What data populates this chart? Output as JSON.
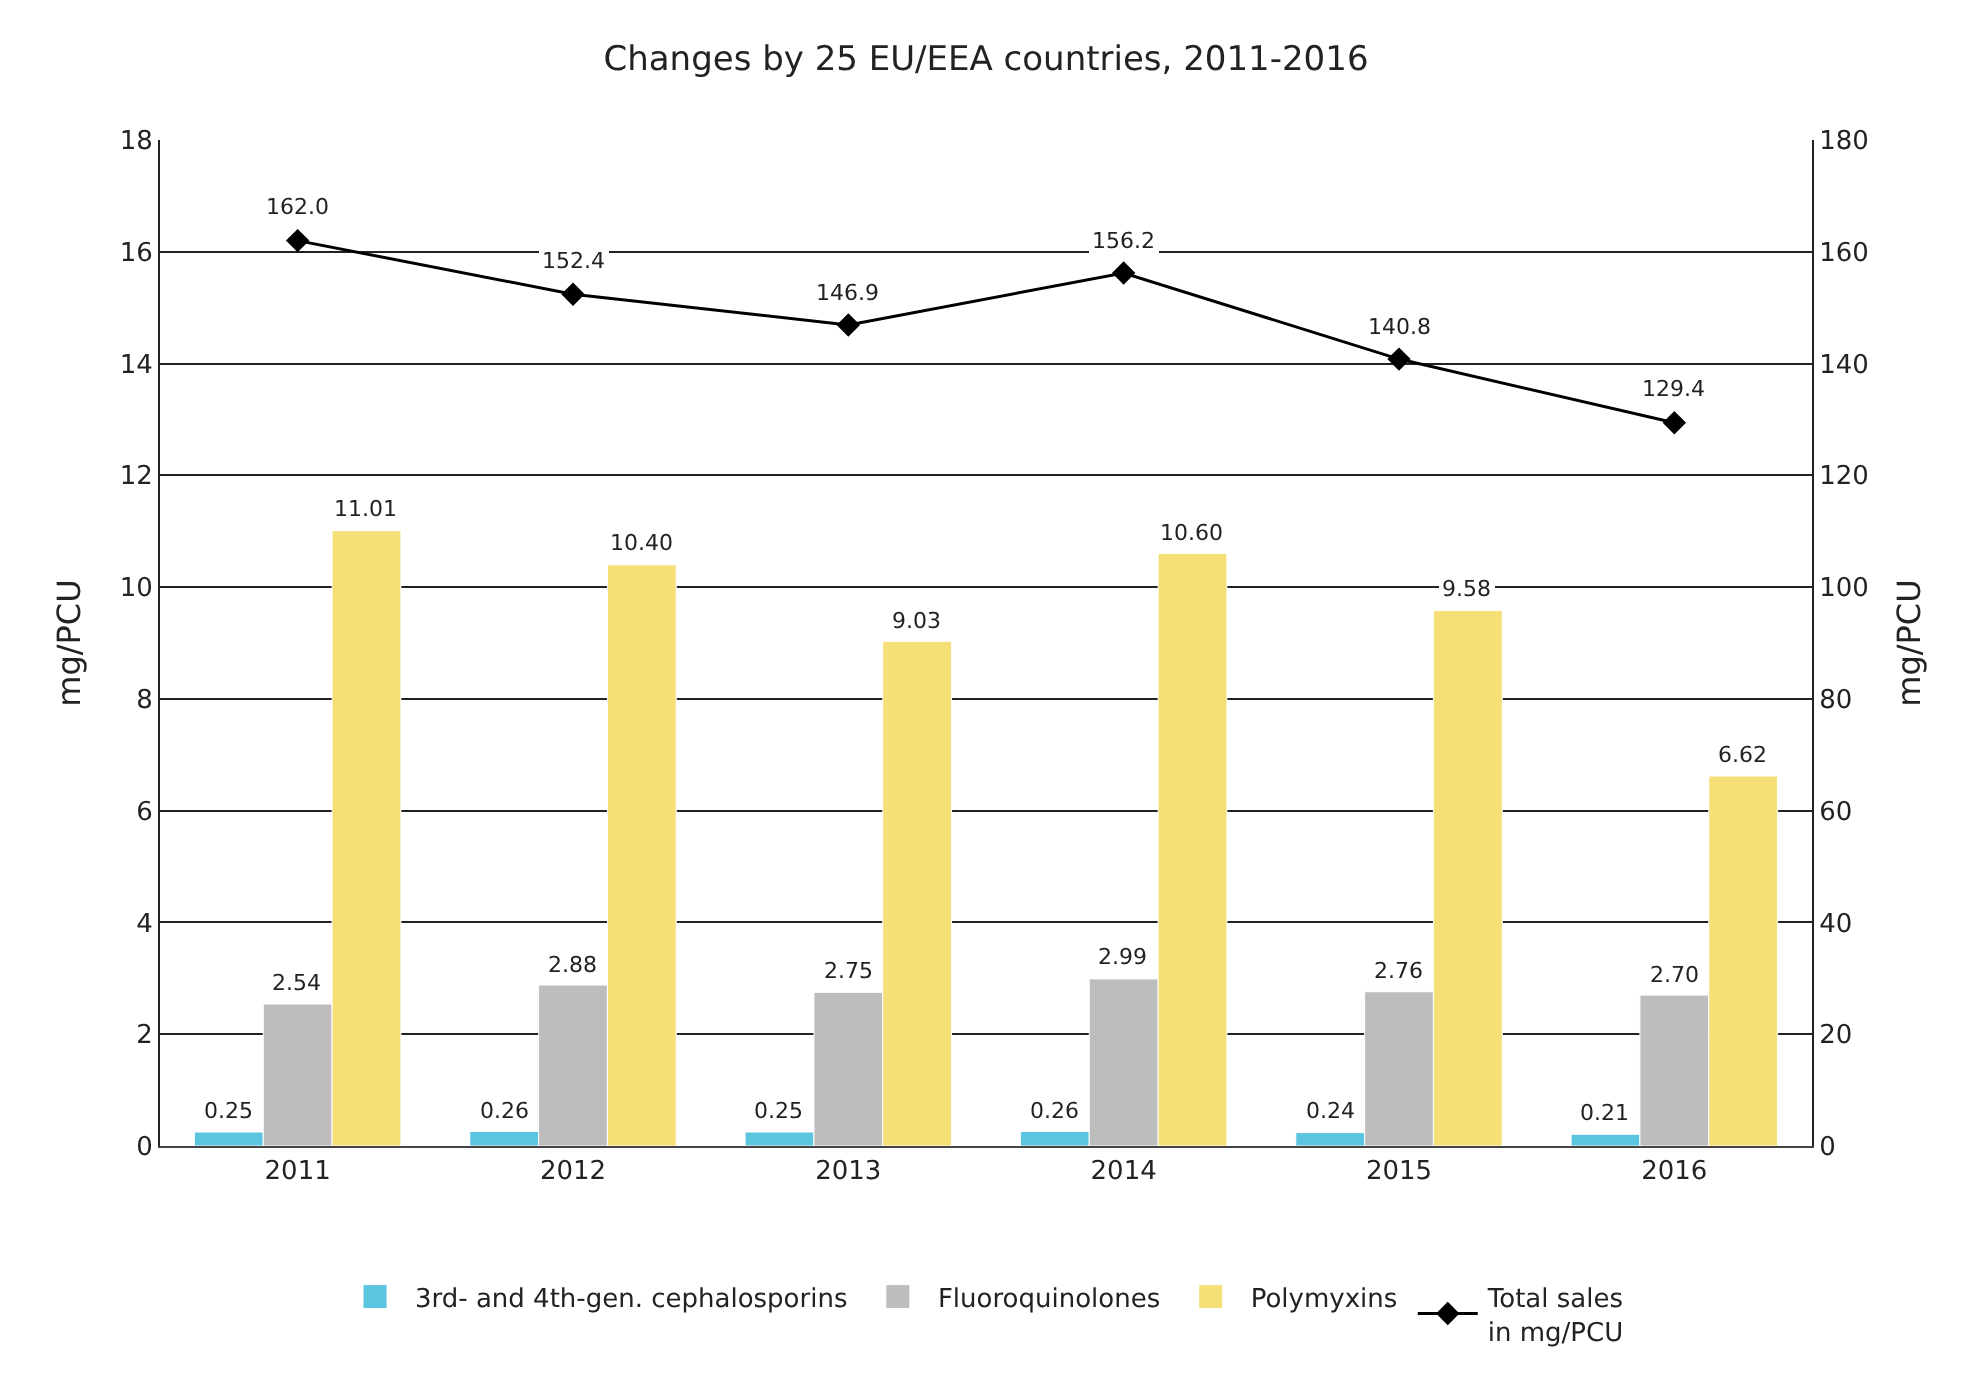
{
  "chart_data": {
    "type": "bar",
    "title": "Changes by 25 EU/EEA countries, 2011-2016",
    "ylabel": "mg/PCU",
    "y2label": "mg/PCU",
    "categories": [
      "2011",
      "2012",
      "2013",
      "2014",
      "2015",
      "2016"
    ],
    "series": [
      {
        "name": "3rd- and 4th-gen. cephalosporins",
        "color": "#5bc4df",
        "values": [
          0.25,
          0.26,
          0.25,
          0.26,
          0.24,
          0.21
        ],
        "value_labels": [
          "0.25",
          "0.26",
          "0.25",
          "0.26",
          "0.24",
          "0.21"
        ]
      },
      {
        "name": "Fluoroquinolones",
        "color": "#bdbdbd",
        "values": [
          2.54,
          2.88,
          2.75,
          2.99,
          2.76,
          2.7
        ],
        "value_labels": [
          "2.54",
          "2.88",
          "2.75",
          "2.99",
          "2.76",
          "2.70"
        ]
      },
      {
        "name": "Polymyxins",
        "color": "#f6df77",
        "values": [
          11.01,
          10.4,
          9.03,
          10.6,
          9.58,
          6.62
        ],
        "value_labels": [
          "11.01",
          "10.40",
          "9.03",
          "10.60",
          "9.58",
          "6.62"
        ]
      },
      {
        "name": "Total sales\nin mg/PCU",
        "type": "line",
        "axis": "y2",
        "color": "#000000",
        "marker": "diamond",
        "values": [
          162.0,
          152.4,
          146.9,
          156.2,
          140.8,
          129.4
        ],
        "value_labels": [
          "162.0",
          "152.4",
          "146.9",
          "156.2",
          "140.8",
          "129.4"
        ]
      }
    ],
    "ylim": [
      0,
      18
    ],
    "yticks": [
      0,
      2,
      4,
      6,
      8,
      10,
      12,
      14,
      16,
      18
    ],
    "y2lim": [
      0,
      180
    ],
    "y2ticks": [
      0,
      20,
      40,
      60,
      80,
      100,
      120,
      140,
      160,
      180
    ],
    "grid": "y",
    "legend": "bottom"
  }
}
